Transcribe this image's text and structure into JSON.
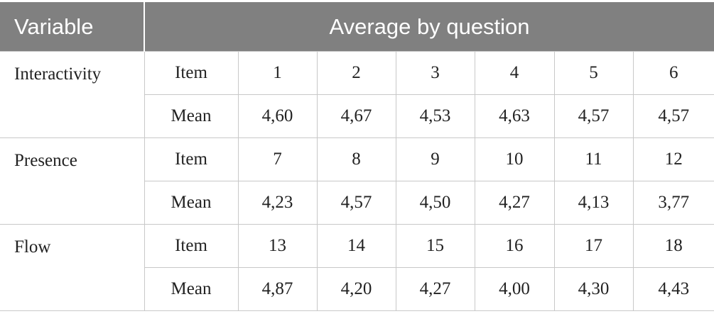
{
  "header": {
    "variable": "Variable",
    "average": "Average by question"
  },
  "groups": [
    {
      "variable": "Interactivity",
      "rows": [
        [
          "Item",
          "1",
          "2",
          "3",
          "4",
          "5",
          "6"
        ],
        [
          "Mean",
          "4,60",
          "4,67",
          "4,53",
          "4,63",
          "4,57",
          "4,57"
        ]
      ]
    },
    {
      "variable": "Presence",
      "rows": [
        [
          "Item",
          "7",
          "8",
          "9",
          "10",
          "11",
          "12"
        ],
        [
          "Mean",
          "4,23",
          "4,57",
          "4,50",
          "4,27",
          "4,13",
          "3,77"
        ]
      ]
    },
    {
      "variable": "Flow",
      "rows": [
        [
          "Item",
          "13",
          "14",
          "15",
          "16",
          "17",
          "18"
        ],
        [
          "Mean",
          "4,87",
          "4,20",
          "4,27",
          "4,00",
          "4,30",
          "4,43"
        ]
      ]
    }
  ]
}
